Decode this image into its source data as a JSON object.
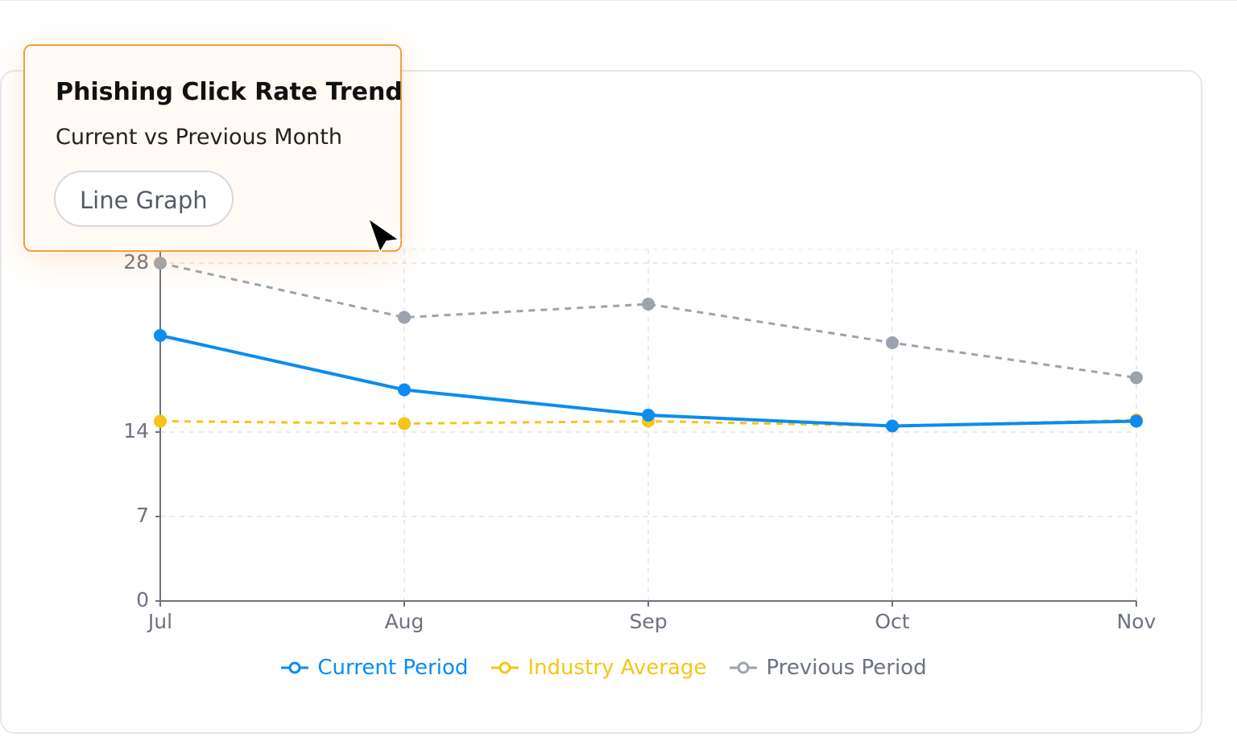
{
  "panel": {
    "title": "Phishing Click Rate Trend",
    "subtitle": "Current vs Previous Month",
    "badge": "Line Graph"
  },
  "chart_data": {
    "type": "line",
    "categories": [
      "Jul",
      "Aug",
      "Sep",
      "Oct",
      "Nov"
    ],
    "series": [
      {
        "name": "Current Period",
        "color": "#0a8cf0",
        "dashed": false,
        "values": [
          22,
          17.5,
          15.4,
          14.5,
          14.9
        ]
      },
      {
        "name": "Industry Average",
        "color": "#f5c518",
        "dashed": true,
        "values": [
          14.9,
          14.7,
          14.9,
          14.5,
          15.0
        ]
      },
      {
        "name": "Previous Period",
        "color": "#9ca3af",
        "dashed": true,
        "values": [
          28,
          23.5,
          24.6,
          21.4,
          18.5
        ]
      }
    ],
    "ylim": [
      0,
      28
    ],
    "yticks": [
      0,
      7,
      14,
      28
    ],
    "grid": true
  }
}
